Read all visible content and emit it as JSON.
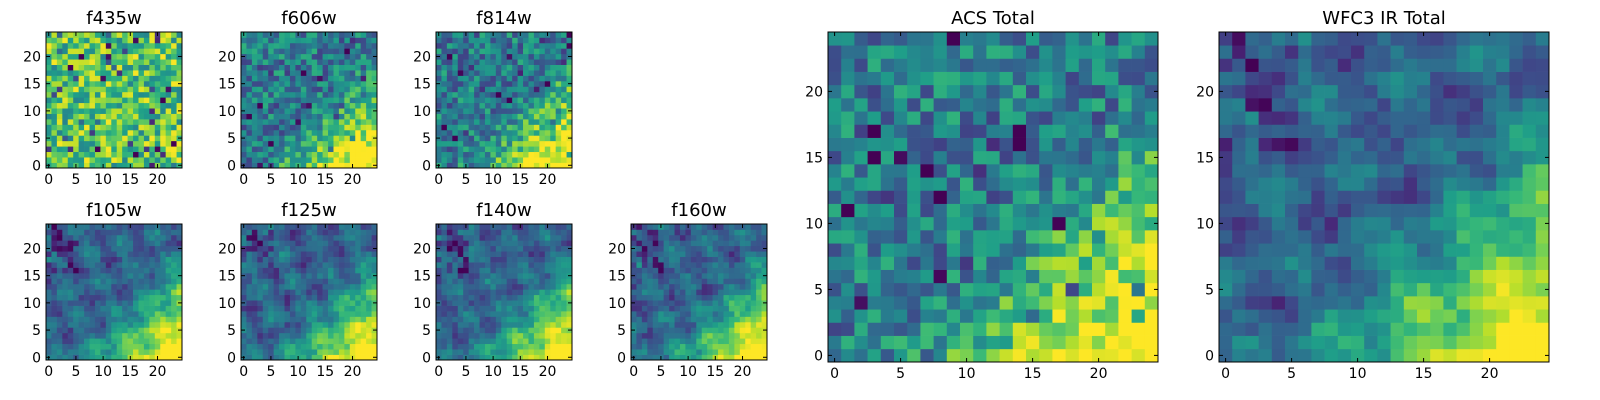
{
  "chart_data": [
    {
      "type": "heatmap",
      "title": "f435w",
      "colormap": "viridis",
      "pattern": "uniform-noise",
      "xlim": [
        0,
        25
      ],
      "ylim": [
        0,
        25
      ],
      "xticks": [
        "0",
        "5",
        "10",
        "15",
        "20"
      ],
      "yticks": [
        "0",
        "5",
        "10",
        "15",
        "20"
      ]
    },
    {
      "type": "heatmap",
      "title": "f606w",
      "colormap": "viridis",
      "pattern": "noise-bright-lower-right",
      "xlim": [
        0,
        25
      ],
      "ylim": [
        0,
        25
      ],
      "xticks": [
        "0",
        "5",
        "10",
        "15",
        "20"
      ],
      "yticks": [
        "0",
        "5",
        "10",
        "15",
        "20"
      ]
    },
    {
      "type": "heatmap",
      "title": "f814w",
      "colormap": "viridis",
      "pattern": "noise-bright-lower-right",
      "xlim": [
        0,
        25
      ],
      "ylim": [
        0,
        25
      ],
      "xticks": [
        "0",
        "5",
        "10",
        "15",
        "20"
      ],
      "yticks": [
        "0",
        "5",
        "10",
        "15",
        "20"
      ]
    },
    {
      "type": "heatmap",
      "title": "f105w",
      "colormap": "viridis",
      "pattern": "smooth-bright-lower-right",
      "xlim": [
        0,
        25
      ],
      "ylim": [
        0,
        25
      ],
      "xticks": [
        "0",
        "5",
        "10",
        "15",
        "20"
      ],
      "yticks": [
        "0",
        "5",
        "10",
        "15",
        "20"
      ]
    },
    {
      "type": "heatmap",
      "title": "f125w",
      "colormap": "viridis",
      "pattern": "smooth-bright-lower-right",
      "xlim": [
        0,
        25
      ],
      "ylim": [
        0,
        25
      ],
      "xticks": [
        "0",
        "5",
        "10",
        "15",
        "20"
      ],
      "yticks": [
        "0",
        "5",
        "10",
        "15",
        "20"
      ]
    },
    {
      "type": "heatmap",
      "title": "f140w",
      "colormap": "viridis",
      "pattern": "smooth-bright-lower-right",
      "xlim": [
        0,
        25
      ],
      "ylim": [
        0,
        25
      ],
      "xticks": [
        "0",
        "5",
        "10",
        "15",
        "20"
      ],
      "yticks": [
        "0",
        "5",
        "10",
        "15",
        "20"
      ]
    },
    {
      "type": "heatmap",
      "title": "f160w",
      "colormap": "viridis",
      "pattern": "smooth-bright-lower-right",
      "xlim": [
        0,
        25
      ],
      "ylim": [
        0,
        25
      ],
      "xticks": [
        "0",
        "5",
        "10",
        "15",
        "20"
      ],
      "yticks": [
        "0",
        "5",
        "10",
        "15",
        "20"
      ]
    },
    {
      "type": "heatmap",
      "title": "ACS Total",
      "colormap": "viridis",
      "pattern": "noise-bright-lower-right",
      "xlim": [
        0,
        25
      ],
      "ylim": [
        0,
        25
      ],
      "xticks": [
        "0",
        "5",
        "10",
        "15",
        "20"
      ],
      "yticks": [
        "0",
        "5",
        "10",
        "15",
        "20"
      ]
    },
    {
      "type": "heatmap",
      "title": "WFC3 IR Total",
      "colormap": "viridis",
      "pattern": "smooth-bright-lower-right",
      "xlim": [
        0,
        25
      ],
      "ylim": [
        0,
        25
      ],
      "xticks": [
        "0",
        "5",
        "10",
        "15",
        "20"
      ],
      "yticks": [
        "0",
        "5",
        "10",
        "15",
        "20"
      ]
    }
  ]
}
